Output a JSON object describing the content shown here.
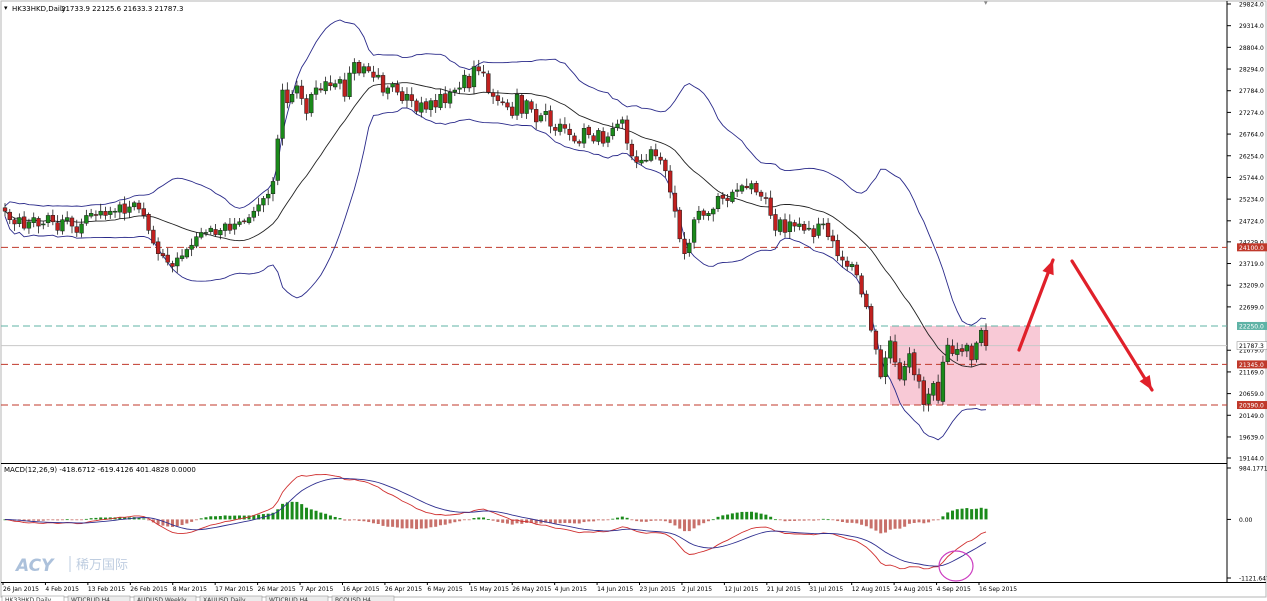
{
  "window": {
    "symbol_title": "HK33HKD,Daily",
    "ohlc_text": "21733.9 22125.6 21633.3 21787.3",
    "macd_title": "MACD(12,26,9) -418.6712 -619.4126 401.4828 0.0000",
    "watermark_logo": "ACY",
    "watermark_text": "稀万国际"
  },
  "tabs": [
    "HK33HKD,Daily",
    "WTICRUD,H4",
    "AUDUSD,Weekly",
    "XAUUSD,Daily",
    "WTICRUD,H4",
    "BCOUSD,H4"
  ],
  "colors": {
    "bull": "#1a8a1a",
    "bear": "#c0201f",
    "band": "#2a2a8a",
    "level_red": "#c0392b",
    "level_teal": "#5fb3a6",
    "zone": "#f7bfcf",
    "arrow": "#e0202a",
    "macd_pos": "#1a8a1a",
    "macd_neg": "#c8706a",
    "signal_line": "#d03030",
    "macd_line": "#303090",
    "circle": "#cc3cc0"
  },
  "chart_data": [
    {
      "type": "candlestick",
      "title": "HK33HKD,Daily",
      "ylim": [
        19144,
        29824
      ],
      "y_ticks": [
        {
          "v": 29824,
          "t": "29824.0"
        },
        {
          "v": 29314,
          "t": "29314.0"
        },
        {
          "v": 28804,
          "t": "28804.0"
        },
        {
          "v": 28294,
          "t": "28294.0"
        },
        {
          "v": 27784,
          "t": "27784.0"
        },
        {
          "v": 27274,
          "t": "27274.0"
        },
        {
          "v": 26764,
          "t": "26764.0"
        },
        {
          "v": 26254,
          "t": "26254.0"
        },
        {
          "v": 25744,
          "t": "25744.0"
        },
        {
          "v": 25234,
          "t": "25234.0"
        },
        {
          "v": 24724,
          "t": "24724.0"
        },
        {
          "v": 24229,
          "t": "24229.0"
        },
        {
          "v": 23719,
          "t": "23719.0"
        },
        {
          "v": 23209,
          "t": "23209.0"
        },
        {
          "v": 22699,
          "t": "22699.0"
        },
        {
          "v": 21679,
          "t": "21679.0"
        },
        {
          "v": 21169,
          "t": "21169.0"
        },
        {
          "v": 20659,
          "t": "20659.0"
        },
        {
          "v": 20149,
          "t": "20149.0"
        },
        {
          "v": 19639,
          "t": "19639.0"
        },
        {
          "v": 19144,
          "t": "19144.0"
        }
      ],
      "levels": [
        {
          "value": 24100,
          "label": "24100.0",
          "style": "red"
        },
        {
          "value": 22250,
          "label": "22250.0",
          "style": "teal"
        },
        {
          "value": 21345,
          "label": "21345.0",
          "style": "red"
        },
        {
          "value": 20390,
          "label": "20390.0",
          "style": "red"
        }
      ],
      "current_price": {
        "value": 21787.3,
        "label": "21787.3"
      },
      "x_labels": [
        "26 Jan 2015",
        "4 Feb 2015",
        "13 Feb 2015",
        "26 Feb 2015",
        "8 Mar 2015",
        "17 Mar 2015",
        "26 Mar 2015",
        "7 Apr 2015",
        "16 Apr 2015",
        "26 Apr 2015",
        "6 May 2015",
        "15 May 2015",
        "26 May 2015",
        "4 Jun 2015",
        "14 Jun 2015",
        "23 Jun 2015",
        "2 Jul 2015",
        "12 Jul 2015",
        "21 Jul 2015",
        "31 Jul 2015",
        "12 Aug 2015",
        "24 Aug 2015",
        "4 Sep 2015",
        "16 Sep 2015"
      ],
      "close": [
        24950,
        24750,
        24650,
        24800,
        24550,
        24700,
        24800,
        24600,
        24650,
        24850,
        24700,
        24500,
        24750,
        24800,
        24600,
        24450,
        24650,
        24850,
        24900,
        24850,
        24950,
        24850,
        24950,
        24950,
        25100,
        24900,
        25050,
        25150,
        25000,
        24850,
        24500,
        24200,
        23950,
        23900,
        23750,
        23650,
        23850,
        23900,
        24050,
        24150,
        24350,
        24450,
        24450,
        24550,
        24400,
        24500,
        24650,
        24500,
        24650,
        24700,
        24700,
        24800,
        24950,
        25100,
        25250,
        25350,
        25650,
        26650,
        27800,
        27500,
        27700,
        27900,
        27600,
        27250,
        27700,
        27850,
        27800,
        28000,
        27900,
        27950,
        28050,
        27650,
        28200,
        28450,
        28200,
        28350,
        28250,
        28100,
        28150,
        27750,
        27850,
        27950,
        27750,
        27550,
        27700,
        27550,
        27300,
        27500,
        27350,
        27550,
        27400,
        27700,
        27500,
        27750,
        27800,
        27850,
        28150,
        27850,
        28350,
        28250,
        28200,
        27750,
        27650,
        27550,
        27500,
        27400,
        27200,
        27700,
        27250,
        27550,
        27350,
        27050,
        27200,
        27300,
        26950,
        26850,
        27000,
        26900,
        26750,
        26600,
        26550,
        26900,
        26750,
        26600,
        26850,
        26550,
        26700,
        26900,
        27000,
        27100,
        26550,
        26250,
        26100,
        26150,
        26150,
        26400,
        26250,
        26150,
        25900,
        25400,
        24950,
        24300,
        23950,
        24200,
        24750,
        24950,
        24850,
        24900,
        25000,
        25300,
        25250,
        25200,
        25400,
        25450,
        25550,
        25500,
        25600,
        25400,
        25300,
        25250,
        24850,
        24500,
        24750,
        24450,
        24700,
        24600,
        24650,
        24500,
        24550,
        24350,
        24650,
        24650,
        24350,
        24250,
        23900,
        23800,
        23650,
        23700,
        23450,
        23000,
        22700,
        22150,
        21700,
        21050,
        21500,
        21900,
        21400,
        21000,
        21300,
        21600,
        21100,
        20950,
        20400,
        20650,
        20900,
        20500,
        21400,
        21800,
        21600,
        21700,
        21650,
        21800,
        21450,
        21850,
        22150,
        21787
      ]
    },
    {
      "type": "macd",
      "title": "MACD(12,26,9)",
      "macd_value": -418.6712,
      "signal_value": -619.4126,
      "histogram_value": 401.4828,
      "ylim": [
        -1121.647,
        984.1771
      ],
      "y_ticks": [
        {
          "v": 984.1771,
          "t": "984.1771"
        },
        {
          "v": 0,
          "t": "0.00"
        },
        {
          "v": -1121.647,
          "t": "-1121.647"
        }
      ]
    }
  ]
}
